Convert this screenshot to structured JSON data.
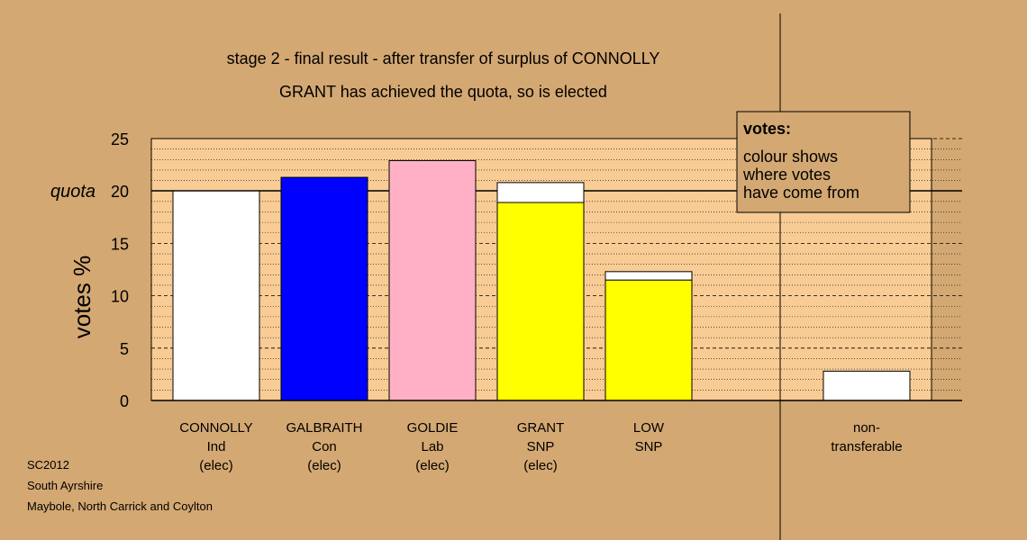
{
  "chart_data": {
    "type": "bar",
    "title": "stage 2 - final result - after transfer of surplus of CONNOLLY",
    "subtitle": "GRANT has achieved the quota, so is elected",
    "ylabel": "votes %",
    "ylim": [
      0,
      25
    ],
    "yticks": [
      {
        "value": 25,
        "label": "25"
      },
      {
        "value": 20,
        "label": "20"
      },
      {
        "value": 15,
        "label": "15"
      },
      {
        "value": 10,
        "label": "10"
      },
      {
        "value": 5,
        "label": "5"
      },
      {
        "value": 0,
        "label": "0"
      }
    ],
    "quota": {
      "value": 20,
      "label": "quota"
    },
    "grid": true,
    "categories": [
      {
        "lines": [
          "CONNOLLY",
          "Ind",
          "(elec)"
        ],
        "base": 20.0,
        "base_color": "#ffffff",
        "transfer": 0.0
      },
      {
        "lines": [
          "GALBRAITH",
          "Con",
          "(elec)"
        ],
        "base": 21.3,
        "base_color": "#0000ff",
        "transfer": 0.0
      },
      {
        "lines": [
          "GOLDIE",
          "Lab",
          "(elec)"
        ],
        "base": 22.9,
        "base_color": "#ffb0c4",
        "transfer": 0.0
      },
      {
        "lines": [
          "GRANT",
          "SNP",
          "(elec)"
        ],
        "base": 18.9,
        "base_color": "#ffff00",
        "transfer": 1.9
      },
      {
        "lines": [
          "LOW",
          "SNP"
        ],
        "base": 11.5,
        "base_color": "#ffff00",
        "transfer": 0.8
      }
    ],
    "non_transferable": {
      "lines": [
        "non-",
        "transferable"
      ],
      "value": 2.8
    },
    "transfer_color": "#ffffff",
    "legend": {
      "title": "votes:",
      "lines": [
        "colour shows",
        "where votes",
        "have come from"
      ],
      "placement": "top-right"
    },
    "footer": [
      "SC2012",
      "South Ayrshire",
      "Maybole, North Carrick and Coylton"
    ]
  }
}
